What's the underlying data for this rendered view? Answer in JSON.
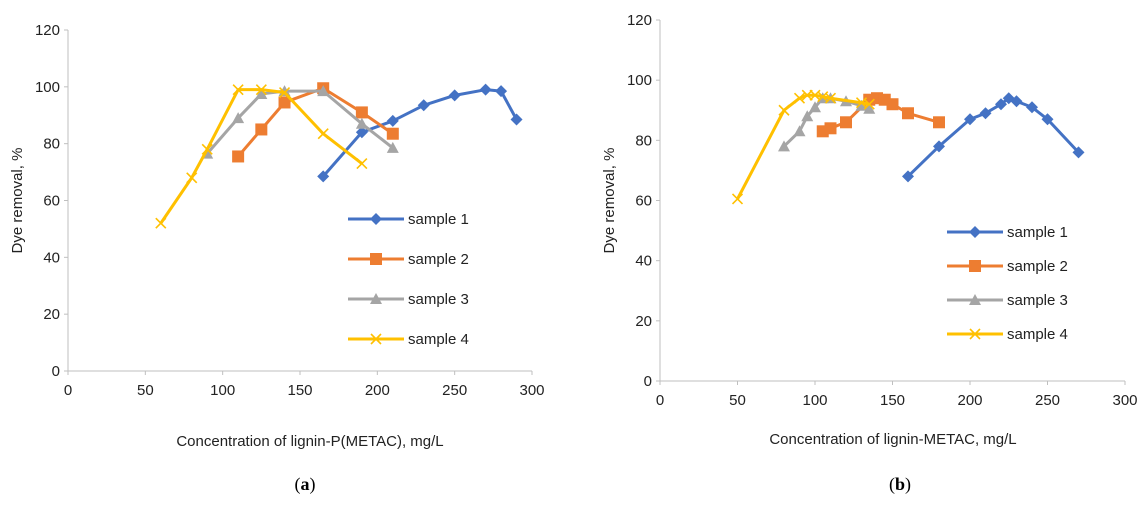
{
  "chart_data": [
    {
      "type": "line",
      "panel_label": {
        "open": "(",
        "letter": "a",
        "close": ")"
      },
      "xlabel": "Concentration of lignin-P(METAC), mg/L",
      "ylabel": "Dye removal, %",
      "xlim": [
        0,
        300
      ],
      "ylim": [
        0,
        120
      ],
      "xticks": [
        "0",
        "50",
        "100",
        "150",
        "200",
        "250",
        "300"
      ],
      "yticks": [
        "0",
        "20",
        "40",
        "60",
        "80",
        "100",
        "120"
      ],
      "legend_position": "right",
      "series": [
        {
          "name": "sample 1",
          "color": "#4472C4",
          "marker": "diamond",
          "x": [
            165,
            190,
            210,
            230,
            250,
            270,
            280,
            290
          ],
          "y": [
            68.5,
            84,
            88,
            93.5,
            97,
            99,
            98.5,
            88.5
          ]
        },
        {
          "name": "sample 2",
          "color": "#ED7D31",
          "marker": "square",
          "x": [
            110,
            125,
            140,
            165,
            190,
            210
          ],
          "y": [
            75.5,
            85,
            94.5,
            99.5,
            91,
            83.5
          ]
        },
        {
          "name": "sample 3",
          "color": "#A5A5A5",
          "marker": "triangle",
          "x": [
            90,
            110,
            125,
            140,
            165,
            190,
            210
          ],
          "y": [
            76.5,
            89,
            97.5,
            98.5,
            98.5,
            87,
            78.5
          ]
        },
        {
          "name": "sample 4",
          "color": "#FFC000",
          "marker": "x",
          "x": [
            60,
            80,
            90,
            110,
            125,
            140,
            165,
            190
          ],
          "y": [
            52,
            68,
            78,
            99,
            99,
            98,
            83.5,
            73
          ]
        }
      ]
    },
    {
      "type": "line",
      "panel_label": {
        "open": "(",
        "letter": "b",
        "close": ")"
      },
      "xlabel": "Concentration of lignin-METAC, mg/L",
      "ylabel": "Dye removal, %",
      "xlim": [
        0,
        300
      ],
      "ylim": [
        0,
        120
      ],
      "xticks": [
        "0",
        "50",
        "100",
        "150",
        "200",
        "250",
        "300"
      ],
      "yticks": [
        "0",
        "20",
        "40",
        "60",
        "80",
        "100",
        "120"
      ],
      "legend_position": "right",
      "series": [
        {
          "name": "sample 1",
          "color": "#4472C4",
          "marker": "diamond",
          "x": [
            160,
            180,
            200,
            210,
            220,
            225,
            230,
            240,
            250,
            270
          ],
          "y": [
            68,
            78,
            87,
            89,
            92,
            94,
            93,
            91,
            87,
            76
          ]
        },
        {
          "name": "sample 2",
          "color": "#ED7D31",
          "marker": "square",
          "x": [
            105,
            110,
            120,
            135,
            140,
            145,
            150,
            160,
            180
          ],
          "y": [
            83,
            84,
            86,
            93.5,
            94,
            93.5,
            92,
            89,
            86
          ]
        },
        {
          "name": "sample 3",
          "color": "#A5A5A5",
          "marker": "triangle",
          "x": [
            80,
            90,
            95,
            100,
            105,
            110,
            120,
            130,
            135
          ],
          "y": [
            78,
            83,
            88,
            91,
            94,
            94,
            93,
            91.5,
            90.5
          ]
        },
        {
          "name": "sample 4",
          "color": "#FFC000",
          "marker": "x",
          "x": [
            50,
            80,
            90,
            95,
            100,
            105,
            110,
            130,
            135
          ],
          "y": [
            60.5,
            90,
            94,
            95,
            95,
            94.5,
            94,
            92.5,
            92
          ]
        }
      ]
    }
  ]
}
